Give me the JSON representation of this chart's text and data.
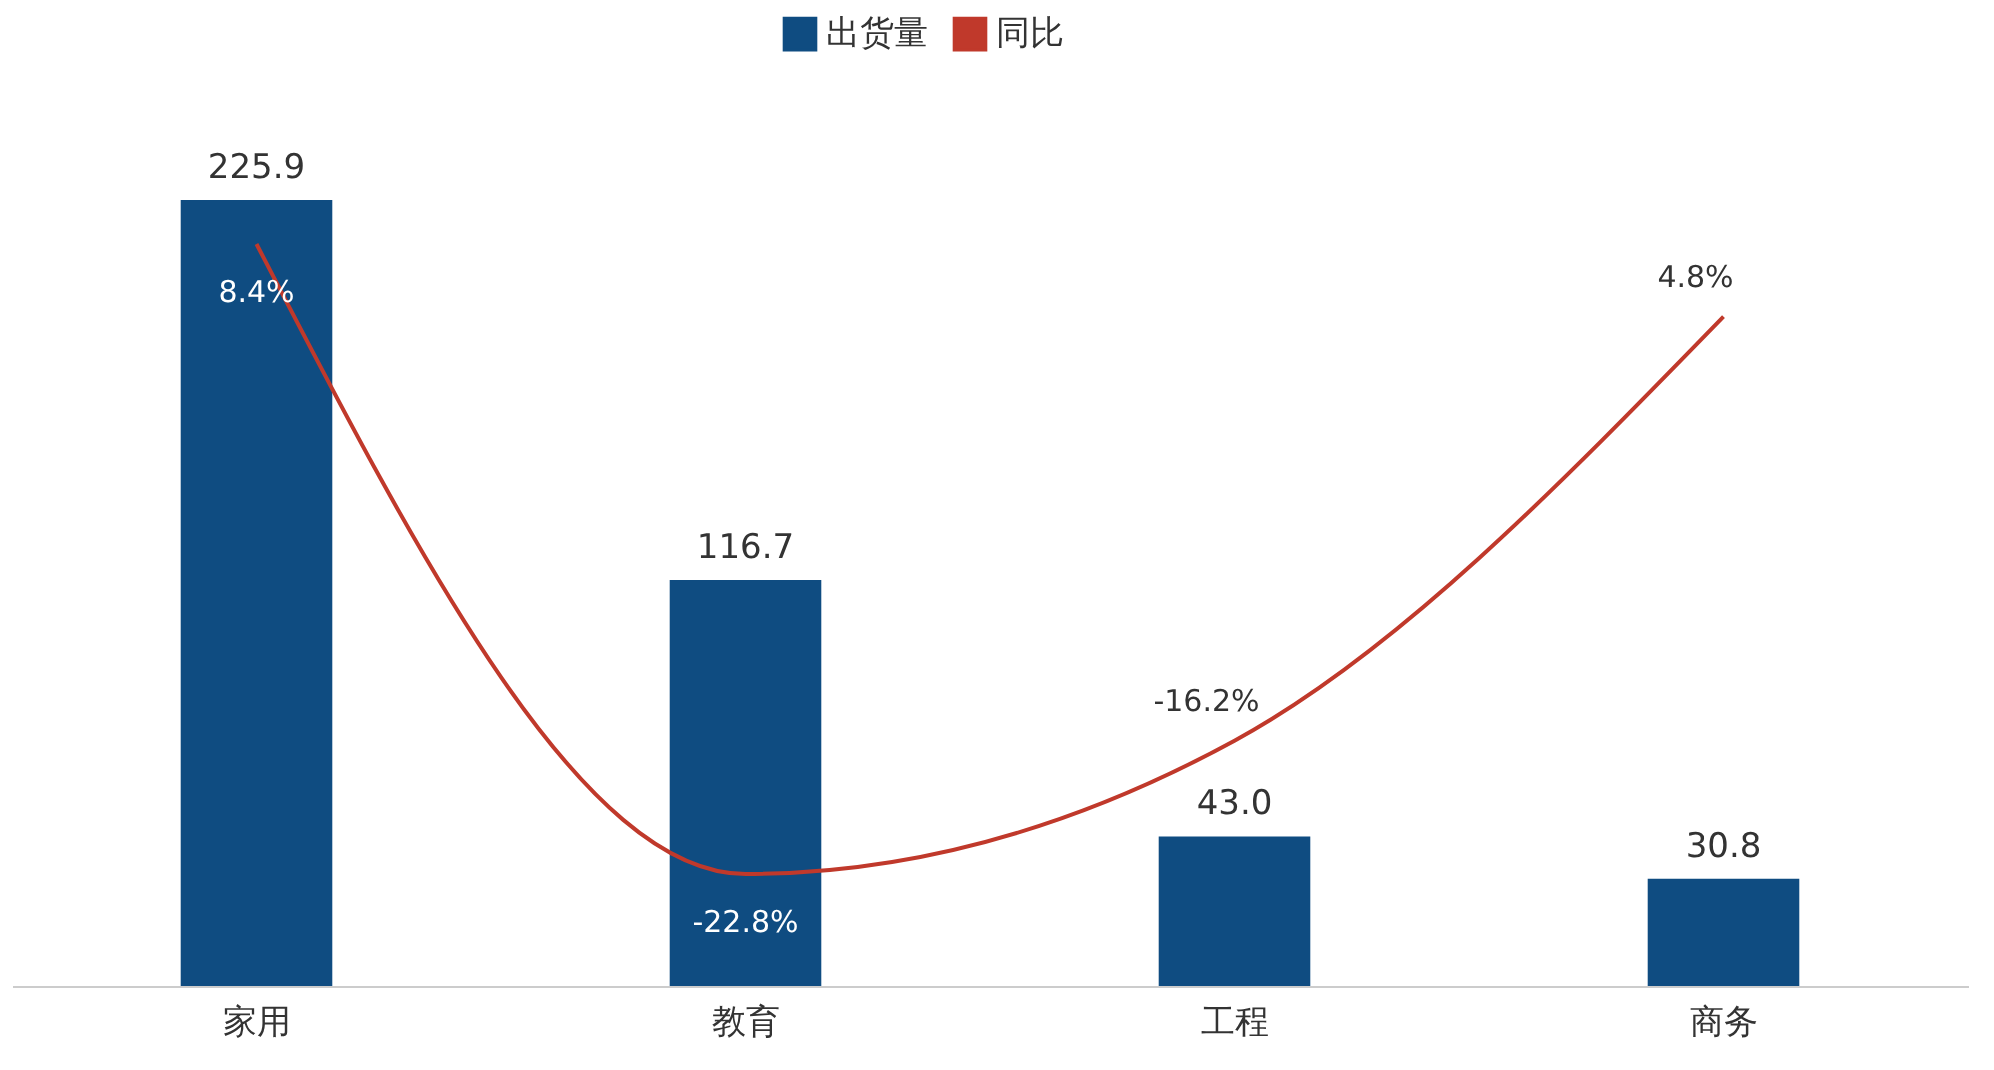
{
  "chart_data": {
    "type": "bar",
    "categories": [
      "家用",
      "教育",
      "工程",
      "商务"
    ],
    "series": [
      {
        "name": "出货量",
        "color": "#0f4c81",
        "values": [
          225.9,
          116.7,
          43.0,
          30.8
        ],
        "value_labels": [
          "225.9",
          "116.7",
          "43.0",
          "30.8"
        ]
      },
      {
        "name": "同比",
        "type": "line",
        "axis": "y2",
        "color": "#c0392b",
        "values": [
          8.4,
          -22.8,
          -16.2,
          4.8
        ],
        "value_labels": [
          "8.4%",
          "-22.8%",
          "-16.2%",
          "4.8%"
        ]
      }
    ],
    "tick_labels": "x",
    "legend": "top",
    "marker": "none",
    "line_style": "solid"
  }
}
